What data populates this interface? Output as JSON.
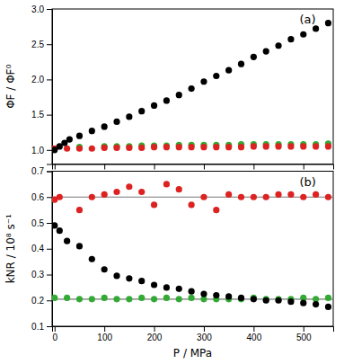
{
  "chart_data": [
    {
      "type": "scatter",
      "title": "(a)",
      "ylabel": "ΦF / ΦF⁰",
      "xlim": [
        -5,
        560
      ],
      "xticks": [
        0,
        100,
        200,
        300,
        400,
        500
      ],
      "ylim": [
        0.8,
        3.0
      ],
      "yticks": [
        {
          "value": 1.0,
          "label": "1.0"
        },
        1.5,
        {
          "value": 2.0,
          "label": "2.0"
        },
        2.5,
        {
          "value": 3.0,
          "label": "3.0"
        }
      ],
      "tick_labels": "y",
      "series": [
        {
          "color": "#000000",
          "x": [
            0,
            10,
            20,
            30,
            50,
            75,
            100,
            125,
            150,
            175,
            200,
            225,
            250,
            275,
            300,
            325,
            350,
            375,
            400,
            425,
            450,
            475,
            500,
            525,
            550
          ],
          "values": [
            1.0,
            1.05,
            1.1,
            1.15,
            1.2,
            1.27,
            1.33,
            1.4,
            1.47,
            1.55,
            1.63,
            1.7,
            1.78,
            1.87,
            1.97,
            2.05,
            2.13,
            2.22,
            2.32,
            2.4,
            2.48,
            2.57,
            2.64,
            2.72,
            2.8
          ]
        },
        {
          "color": "#dd2222",
          "x": [
            0,
            25,
            50,
            75,
            100,
            125,
            150,
            175,
            200,
            225,
            250,
            275,
            300,
            325,
            350,
            375,
            400,
            425,
            450,
            475,
            500,
            525,
            550
          ],
          "values": [
            1.02,
            1.02,
            1.02,
            1.02,
            1.03,
            1.03,
            1.03,
            1.03,
            1.04,
            1.04,
            1.04,
            1.04,
            1.04,
            1.04,
            1.04,
            1.04,
            1.05,
            1.05,
            1.05,
            1.05,
            1.05,
            1.05,
            1.05
          ]
        },
        {
          "color": "#33aa33",
          "x": [
            50,
            100,
            125,
            150,
            175,
            200,
            225,
            250,
            275,
            300,
            325,
            350,
            375,
            400,
            425,
            450,
            475,
            500,
            525,
            550
          ],
          "values": [
            1.04,
            1.05,
            1.05,
            1.05,
            1.06,
            1.06,
            1.06,
            1.07,
            1.07,
            1.07,
            1.07,
            1.07,
            1.08,
            1.08,
            1.08,
            1.08,
            1.08,
            1.08,
            1.08,
            1.09
          ]
        }
      ]
    },
    {
      "type": "scatter",
      "title": "(b)",
      "xlabel": "P / MPa",
      "ylabel": "kNR / 10⁸ s⁻¹",
      "xlim": [
        -5,
        560
      ],
      "xticks": [
        0,
        100,
        200,
        300,
        400,
        500
      ],
      "ylim": [
        0.1,
        0.7
      ],
      "yticks": [
        0.1,
        0.2,
        0.3,
        0.4,
        0.5,
        0.6,
        0.7
      ],
      "reference_lines": [
        {
          "value": 0.6,
          "color": "#777777"
        },
        {
          "value": 0.205,
          "color": "#777777"
        }
      ],
      "series": [
        {
          "color": "#000000",
          "x": [
            0,
            10,
            25,
            50,
            75,
            100,
            125,
            150,
            175,
            200,
            225,
            250,
            275,
            300,
            325,
            350,
            375,
            400,
            425,
            450,
            475,
            500,
            525,
            550
          ],
          "values": [
            0.49,
            0.47,
            0.43,
            0.41,
            0.36,
            0.32,
            0.295,
            0.285,
            0.275,
            0.26,
            0.25,
            0.245,
            0.235,
            0.225,
            0.22,
            0.215,
            0.21,
            0.205,
            0.2,
            0.2,
            0.195,
            0.19,
            0.185,
            0.175
          ]
        },
        {
          "color": "#dd2222",
          "x": [
            0,
            10,
            50,
            75,
            100,
            125,
            150,
            175,
            200,
            225,
            250,
            275,
            300,
            325,
            350,
            375,
            400,
            425,
            450,
            475,
            500,
            525,
            550
          ],
          "values": [
            0.59,
            0.6,
            0.55,
            0.6,
            0.61,
            0.62,
            0.64,
            0.62,
            0.57,
            0.65,
            0.63,
            0.57,
            0.6,
            0.55,
            0.61,
            0.6,
            0.6,
            0.6,
            0.61,
            0.61,
            0.6,
            0.61,
            0.6
          ]
        },
        {
          "color": "#33aa33",
          "x": [
            0,
            25,
            50,
            75,
            100,
            125,
            150,
            175,
            200,
            225,
            250,
            275,
            300,
            325,
            350,
            375,
            400,
            425,
            450,
            475,
            500,
            525,
            550
          ],
          "values": [
            0.21,
            0.21,
            0.205,
            0.205,
            0.21,
            0.205,
            0.205,
            0.21,
            0.205,
            0.21,
            0.205,
            0.21,
            0.205,
            0.205,
            0.205,
            0.205,
            0.21,
            0.205,
            0.205,
            0.205,
            0.21,
            0.205,
            0.21
          ]
        }
      ]
    }
  ]
}
